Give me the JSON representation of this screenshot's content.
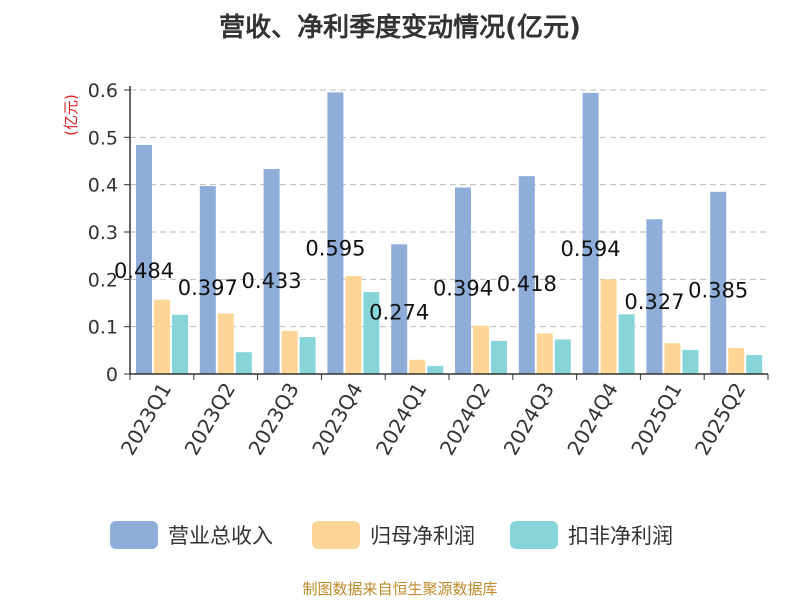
{
  "chart_data": {
    "type": "bar",
    "title": "营收、净利季度变动情况(亿元)",
    "ylabel": "(亿元)",
    "ylim": [
      0,
      0.6
    ],
    "yticks": [
      "0",
      "0.1",
      "0.2",
      "0.3",
      "0.4",
      "0.5",
      "0.6"
    ],
    "grid": true,
    "legend_position": "bottom",
    "categories": [
      "2023Q1",
      "2023Q2",
      "2023Q3",
      "2023Q4",
      "2024Q1",
      "2024Q2",
      "2024Q3",
      "2024Q4",
      "2025Q1",
      "2025Q2"
    ],
    "series": [
      {
        "name": "营业总收入",
        "color": "#8eadd9",
        "values": [
          0.484,
          0.397,
          0.433,
          0.595,
          0.274,
          0.394,
          0.418,
          0.594,
          0.327,
          0.385
        ],
        "labels": [
          "0.484",
          "0.397",
          "0.433",
          "0.595",
          "0.274",
          "0.394",
          "0.418",
          "0.594",
          "0.327",
          "0.385"
        ]
      },
      {
        "name": "归母净利润",
        "color": "#fdd697",
        "values": [
          0.157,
          0.128,
          0.091,
          0.207,
          0.03,
          0.102,
          0.086,
          0.2,
          0.065,
          0.055
        ]
      },
      {
        "name": "扣非净利润",
        "color": "#87d5d8",
        "values": [
          0.125,
          0.046,
          0.078,
          0.173,
          0.017,
          0.07,
          0.073,
          0.126,
          0.051,
          0.04
        ]
      }
    ]
  },
  "source": "制图数据来自恒生聚源数据库"
}
